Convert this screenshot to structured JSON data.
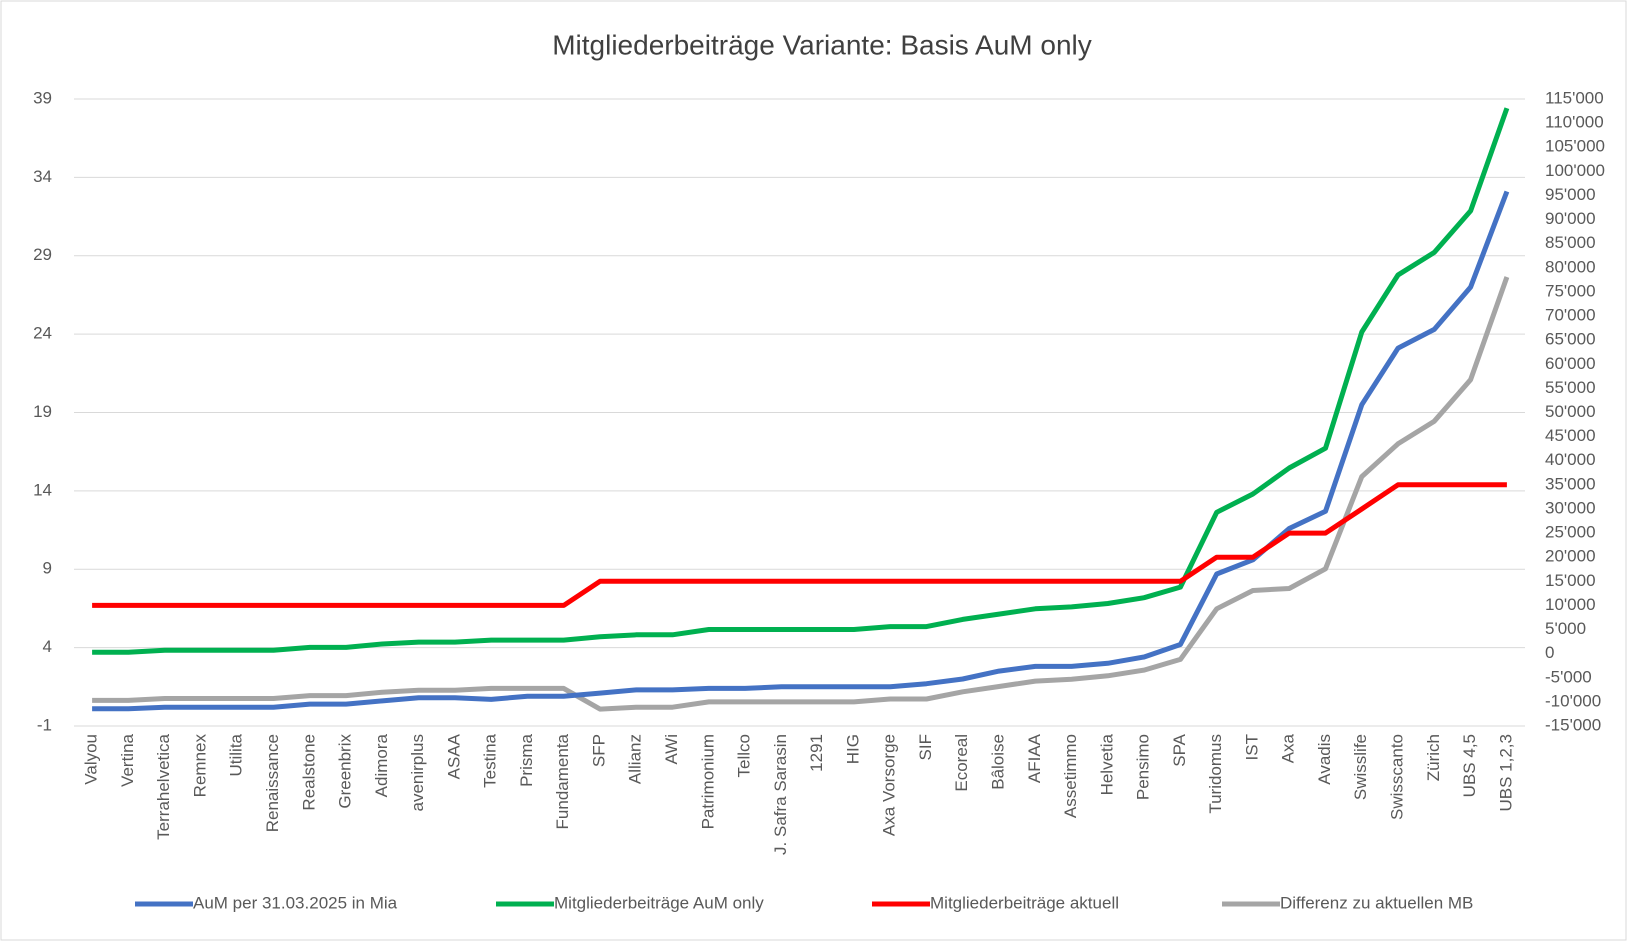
{
  "chart_data": {
    "type": "line",
    "title": "Mitgliederbeiträge Variante: Basis AuM only",
    "categories": [
      "Valyou",
      "Vertina",
      "Terrahelvetica",
      "Remnex",
      "Utilita",
      "Renaissance",
      "Realstone",
      "Greenbrix",
      "Adimora",
      "avenirplus",
      "ASAA",
      "Testina",
      "Prisma",
      "Fundamenta",
      "SFP",
      "Allianz",
      "AWi",
      "Patrimonium",
      "Tellco",
      "J. Safra Sarasin",
      "1291",
      "HIG",
      "Axa Vorsorge",
      "SIF",
      "Ecoreal",
      "Bâloise",
      "AFIAA",
      "Assetimmo",
      "Helvetia",
      "Pensimo",
      "SPA",
      "Turidomus",
      "IST",
      "Axa",
      "Avadis",
      "Swisslife",
      "Swisscanto",
      "Zürich",
      "UBS 4,5",
      "UBS 1,2,3"
    ],
    "series": [
      {
        "name": "AuM per 31.03.2025 in Mia",
        "color": "#4472c4",
        "values": [
          0.1,
          0.1,
          0.2,
          0.2,
          0.2,
          0.2,
          0.4,
          0.4,
          0.6,
          0.8,
          0.8,
          0.7,
          0.9,
          0.9,
          1.1,
          1.3,
          1.3,
          1.4,
          1.4,
          1.5,
          1.5,
          1.5,
          1.5,
          1.7,
          2.0,
          2.5,
          2.8,
          2.8,
          3.0,
          3.4,
          4.2,
          8.7,
          9.6,
          11.6,
          12.7,
          19.5,
          23.1,
          24.3,
          27.0,
          33.1
        ]
      },
      {
        "name": "Mitgliederbeiträge AuM only",
        "color": "#00b050",
        "axis": "y2",
        "values": [
          300,
          300,
          700,
          700,
          700,
          700,
          1300,
          1300,
          2000,
          2400,
          2400,
          2800,
          2800,
          2800,
          3500,
          3900,
          3900,
          5000,
          5000,
          5000,
          5000,
          5000,
          5600,
          5600,
          7100,
          8200,
          9300,
          9700,
          10400,
          11600,
          13800,
          29300,
          33100,
          38500,
          42600,
          66700,
          78500,
          83200,
          91800,
          113100
        ]
      },
      {
        "name": "Mitgliederbeiträge aktuell",
        "color": "#ff0000",
        "axis": "y2",
        "values": [
          10000,
          10000,
          10000,
          10000,
          10000,
          10000,
          10000,
          10000,
          10000,
          10000,
          10000,
          10000,
          10000,
          10000,
          15000,
          15000,
          15000,
          15000,
          15000,
          15000,
          15000,
          15000,
          15000,
          15000,
          15000,
          15000,
          15000,
          15000,
          15000,
          15000,
          15000,
          20000,
          20000,
          25000,
          25000,
          30000,
          35000,
          35000,
          35000,
          35000
        ]
      },
      {
        "name": "Differenz zu aktuellen MB",
        "color": "#a5a5a5",
        "axis": "y2",
        "values": [
          -9700,
          -9700,
          -9300,
          -9300,
          -9300,
          -9300,
          -8700,
          -8700,
          -8000,
          -7600,
          -7600,
          -7200,
          -7200,
          -7200,
          -11500,
          -11100,
          -11100,
          -10000,
          -10000,
          -10000,
          -10000,
          -10000,
          -9400,
          -9400,
          -7900,
          -6800,
          -5700,
          -5300,
          -4600,
          -3400,
          -1200,
          9300,
          13100,
          13500,
          17600,
          36700,
          43500,
          48200,
          56800,
          78100
        ]
      }
    ],
    "ylim": [
      -1,
      39
    ],
    "yticks": [
      -1,
      4,
      9,
      14,
      19,
      24,
      29,
      34,
      39
    ],
    "y2lim": [
      -15000,
      115000
    ],
    "y2ticks": [
      {
        "value": 115000,
        "label": "115'000"
      },
      {
        "value": 110000,
        "label": "110'000"
      },
      {
        "value": 105000,
        "label": "105'000"
      },
      {
        "value": 100000,
        "label": "100'000"
      },
      {
        "value": 95000,
        "label": "95'000"
      },
      {
        "value": 90000,
        "label": "90'000"
      },
      {
        "value": 85000,
        "label": "85'000"
      },
      {
        "value": 80000,
        "label": "80'000"
      },
      {
        "value": 75000,
        "label": "75'000"
      },
      {
        "value": 70000,
        "label": "70'000"
      },
      {
        "value": 65000,
        "label": "65'000"
      },
      {
        "value": 60000,
        "label": "60'000"
      },
      {
        "value": 55000,
        "label": "55'000"
      },
      {
        "value": 50000,
        "label": "50'000"
      },
      {
        "value": 45000,
        "label": "45'000"
      },
      {
        "value": 40000,
        "label": "40'000"
      },
      {
        "value": 35000,
        "label": "35'000"
      },
      {
        "value": 30000,
        "label": "30'000"
      },
      {
        "value": 25000,
        "label": "25'000"
      },
      {
        "value": 20000,
        "label": "20'000"
      },
      {
        "value": 15000,
        "label": "15'000"
      },
      {
        "value": 10000,
        "label": "10'000"
      },
      {
        "value": 5000,
        "label": "5'000"
      },
      0,
      {
        "value": -5000,
        "label": "-5'000"
      },
      {
        "value": -10000,
        "label": "-10'000"
      },
      {
        "value": -15000,
        "label": "-15'000"
      }
    ],
    "grid": true,
    "legend": "bottom"
  }
}
